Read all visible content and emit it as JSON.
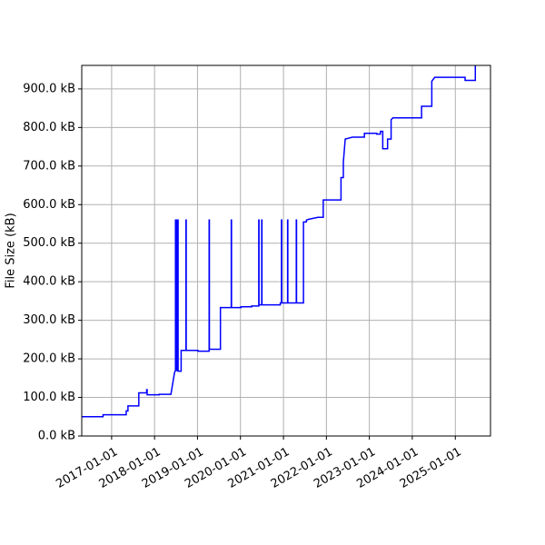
{
  "chart_data": {
    "type": "line",
    "ylabel": "File Size (kB)",
    "grid": true,
    "xlim": [
      "2016-04-22",
      "2025-10-27"
    ],
    "ylim": [
      0,
      961
    ],
    "xticks": [
      "2017-01-01",
      "2018-01-01",
      "2019-01-01",
      "2020-01-01",
      "2021-01-01",
      "2022-01-01",
      "2023-01-01",
      "2024-01-01",
      "2025-01-01"
    ],
    "yticks": [
      {
        "value": 0,
        "label": "0.0 kB"
      },
      {
        "value": 100,
        "label": "100.0 kB"
      },
      {
        "value": 200,
        "label": "200.0 kB"
      },
      {
        "value": 300,
        "label": "300.0 kB"
      },
      {
        "value": 400,
        "label": "400.0 kB"
      },
      {
        "value": 500,
        "label": "500.0 kB"
      },
      {
        "value": 600,
        "label": "600.0 kB"
      },
      {
        "value": 700,
        "label": "700.0 kB"
      },
      {
        "value": 800,
        "label": "800.0 kB"
      },
      {
        "value": 900,
        "label": "900.0 kB"
      }
    ],
    "x": [
      "2016-04-22",
      "2016-10-20",
      "2016-10-20",
      "2017-05-05",
      "2017-05-05",
      "2017-05-20",
      "2017-05-20",
      "2017-08-20",
      "2017-08-20",
      "2017-10-26",
      "2017-10-26",
      "2017-10-30",
      "2017-10-30",
      "2018-02-10",
      "2018-02-10",
      "2018-05-20",
      "2018-06-20",
      "2018-06-28",
      "2018-06-28",
      "2018-07-01",
      "2018-07-01",
      "2018-07-05",
      "2018-07-05",
      "2018-07-10",
      "2018-07-10",
      "2018-07-15",
      "2018-07-15",
      "2018-07-20",
      "2018-07-20",
      "2018-08-15",
      "2018-08-15",
      "2018-09-25",
      "2018-09-25",
      "2018-09-27",
      "2018-09-27",
      "2019-01-05",
      "2019-01-05",
      "2019-04-10",
      "2019-04-10",
      "2019-04-12",
      "2019-04-12",
      "2019-07-15",
      "2019-07-15",
      "2019-10-15",
      "2019-10-15",
      "2019-10-17",
      "2019-10-17",
      "2020-01-05",
      "2020-01-05",
      "2020-04-05",
      "2020-04-05",
      "2020-06-05",
      "2020-06-05",
      "2020-06-07",
      "2020-06-07",
      "2020-06-30",
      "2020-06-30",
      "2020-07-02",
      "2020-07-02",
      "2020-12-05",
      "2020-12-05",
      "2020-12-15",
      "2020-12-15",
      "2020-12-17",
      "2020-12-17",
      "2021-02-05",
      "2021-02-05",
      "2021-02-07",
      "2021-02-07",
      "2021-04-20",
      "2021-04-20",
      "2021-04-22",
      "2021-04-22",
      "2021-06-20",
      "2021-06-20",
      "2021-07-15",
      "2021-07-15",
      "2021-08-05",
      "2021-10-20",
      "2021-12-05",
      "2021-12-05",
      "2022-05-05",
      "2022-05-05",
      "2022-05-25",
      "2022-05-25",
      "2022-06-10",
      "2022-08-10",
      "2022-11-20",
      "2022-11-20",
      "2023-03-05",
      "2023-03-05",
      "2023-04-05",
      "2023-04-05",
      "2023-04-25",
      "2023-04-25",
      "2023-06-05",
      "2023-06-05",
      "2023-07-05",
      "2023-07-05",
      "2023-07-20",
      "2024-03-20",
      "2024-03-20",
      "2024-06-15",
      "2024-06-15",
      "2024-07-10",
      "2025-03-25",
      "2025-03-25",
      "2025-06-20",
      "2025-06-20"
    ],
    "series": [
      {
        "name": "File Size",
        "color": "#0000ff",
        "values": [
          50,
          50,
          55,
          55,
          65,
          65,
          78,
          78,
          112,
          112,
          120,
          120,
          107,
          107,
          108,
          108,
          165,
          170,
          560,
          560,
          170,
          170,
          560,
          560,
          170,
          170,
          560,
          560,
          168,
          168,
          222,
          222,
          560,
          560,
          222,
          222,
          220,
          220,
          560,
          560,
          225,
          225,
          333,
          333,
          560,
          560,
          333,
          333,
          335,
          335,
          337,
          337,
          560,
          560,
          340,
          340,
          560,
          560,
          340,
          340,
          345,
          345,
          560,
          560,
          345,
          345,
          560,
          560,
          345,
          345,
          560,
          560,
          345,
          345,
          555,
          555,
          560,
          562,
          567,
          567,
          612,
          612,
          670,
          670,
          710,
          770,
          775,
          775,
          785,
          785,
          783,
          783,
          790,
          790,
          745,
          745,
          770,
          770,
          820,
          825,
          825,
          855,
          855,
          920,
          930,
          930,
          922,
          922,
          961
        ]
      }
    ]
  }
}
